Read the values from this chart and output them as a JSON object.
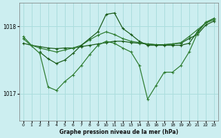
{
  "title": "Graphe pression niveau de la mer (hPa)",
  "bg_color": "#cceef0",
  "grid_color": "#aadddd",
  "line_color_dark": "#1a5c1a",
  "line_color_mid": "#2e7d32",
  "xlim": [
    -0.5,
    23.5
  ],
  "ylim": [
    1016.6,
    1018.35
  ],
  "yticks": [
    1017,
    1018
  ],
  "xticks": [
    0,
    1,
    2,
    3,
    4,
    5,
    6,
    7,
    8,
    9,
    10,
    11,
    12,
    13,
    14,
    15,
    16,
    17,
    18,
    19,
    20,
    21,
    22,
    23
  ],
  "series1": {
    "x": [
      0,
      1,
      2,
      3,
      4,
      5,
      6,
      7,
      8,
      9,
      10,
      11,
      12,
      13,
      14,
      15,
      16,
      17,
      18,
      19,
      20,
      21,
      22,
      23
    ],
    "y": [
      1017.75,
      1017.72,
      1017.7,
      1017.68,
      1017.67,
      1017.68,
      1017.68,
      1017.7,
      1017.72,
      1017.74,
      1017.76,
      1017.78,
      1017.78,
      1017.76,
      1017.75,
      1017.74,
      1017.73,
      1017.73,
      1017.74,
      1017.75,
      1017.82,
      1017.88,
      1018.02,
      1018.08
    ]
  },
  "series2": {
    "x": [
      0,
      1,
      2,
      3,
      4,
      5,
      6,
      7,
      8,
      9,
      10,
      11,
      12,
      13,
      14,
      15,
      16,
      17,
      18,
      19,
      20,
      21,
      22,
      23
    ],
    "y": [
      1017.85,
      1017.72,
      1017.68,
      1017.65,
      1017.62,
      1017.65,
      1017.68,
      1017.72,
      1017.8,
      1017.87,
      1017.92,
      1017.88,
      1017.82,
      1017.78,
      1017.76,
      1017.74,
      1017.73,
      1017.73,
      1017.74,
      1017.76,
      1017.85,
      1017.95,
      1018.05,
      1018.1
    ]
  },
  "series3": {
    "x": [
      2,
      3,
      4,
      5,
      6,
      7,
      8,
      9,
      10,
      11,
      12,
      13,
      14,
      15,
      16,
      17,
      18,
      19,
      20,
      21,
      22,
      23
    ],
    "y": [
      1017.62,
      1017.52,
      1017.45,
      1017.5,
      1017.6,
      1017.72,
      1017.82,
      1017.92,
      1018.18,
      1018.2,
      1017.97,
      1017.88,
      1017.78,
      1017.72,
      1017.72,
      1017.72,
      1017.72,
      1017.72,
      1017.75,
      1017.92,
      1018.06,
      1018.12
    ]
  },
  "series4": {
    "x": [
      0,
      2,
      3,
      4,
      5,
      6,
      7,
      8,
      9,
      10,
      11,
      12,
      13,
      14,
      15,
      16,
      17,
      18,
      19,
      20,
      21,
      22,
      23
    ],
    "y": [
      1017.82,
      1017.6,
      1017.1,
      1017.05,
      1017.18,
      1017.28,
      1017.42,
      1017.58,
      1017.72,
      1017.78,
      1017.75,
      1017.68,
      1017.62,
      1017.42,
      1016.92,
      1017.12,
      1017.32,
      1017.32,
      1017.42,
      1017.62,
      1017.9,
      1018.06,
      1018.12
    ]
  }
}
